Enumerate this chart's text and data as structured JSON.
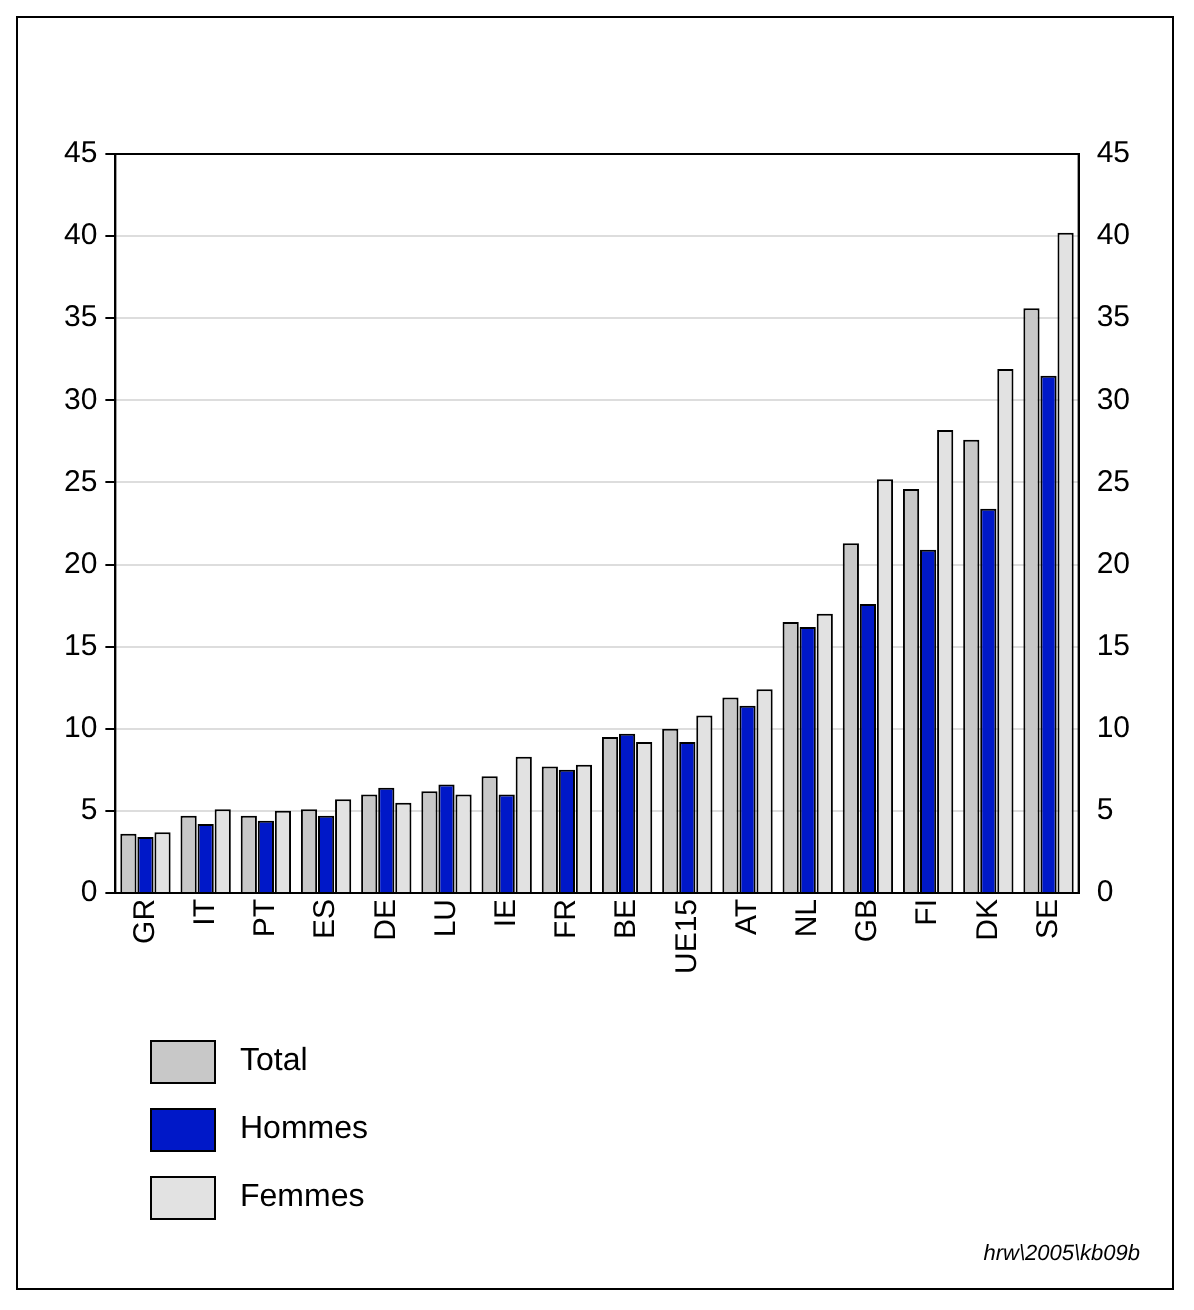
{
  "chart_data": {
    "type": "bar",
    "categories": [
      "GR",
      "IT",
      "PT",
      "ES",
      "DE",
      "LU",
      "IE",
      "FR",
      "BE",
      "UE15",
      "AT",
      "NL",
      "GB",
      "FI",
      "DK",
      "SE"
    ],
    "series": [
      {
        "name": "Total",
        "color": "#c8c8c8",
        "values": [
          3.6,
          4.7,
          4.7,
          5.1,
          6.0,
          6.2,
          7.1,
          7.7,
          9.5,
          10.0,
          11.9,
          16.5,
          21.3,
          24.6,
          27.6,
          35.6
        ]
      },
      {
        "name": "Hommes",
        "color": "#0018c8",
        "values": [
          3.4,
          4.2,
          4.4,
          4.7,
          6.4,
          6.6,
          6.0,
          7.5,
          9.7,
          9.2,
          11.4,
          16.2,
          17.6,
          20.9,
          23.4,
          31.5
        ]
      },
      {
        "name": "Femmes",
        "color": "#e2e2e2",
        "values": [
          3.7,
          5.1,
          5.0,
          5.7,
          5.5,
          6.0,
          8.3,
          7.8,
          9.2,
          10.8,
          12.4,
          17.0,
          25.2,
          28.2,
          31.9,
          40.2
        ]
      }
    ],
    "ylim": [
      0,
      45
    ],
    "yticks": [
      0,
      5,
      10,
      15,
      20,
      25,
      30,
      35,
      40,
      45
    ],
    "y2lim": [
      0,
      45
    ],
    "y2ticks": [
      0,
      5,
      10,
      15,
      20,
      25,
      30,
      35,
      40,
      45
    ],
    "grid": "y",
    "legend": "bottom left",
    "annotations": [
      "hrw\\2005\\kb09b"
    ]
  }
}
